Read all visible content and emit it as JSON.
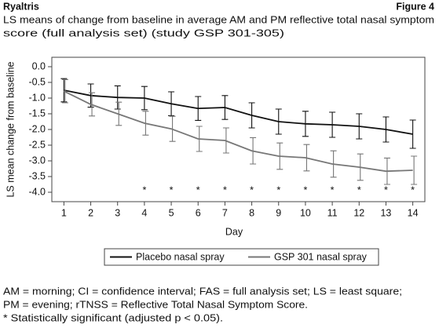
{
  "header": {
    "brand": "Ryaltris",
    "figure": "Figure 4"
  },
  "chart_data": {
    "type": "line",
    "title": [
      "LS means of change from baseline in average AM and PM reflective total nasal symptom",
      "score (full analysis set) (study GSP 301-305)"
    ],
    "x_label": "Day",
    "y_label": "LS mean change from baseline",
    "x": [
      1,
      2,
      3,
      4,
      5,
      6,
      7,
      8,
      9,
      10,
      11,
      12,
      13,
      14
    ],
    "series": [
      {
        "name": "Placebo nasal spray",
        "color": "#111111",
        "values": [
          -0.75,
          -0.92,
          -0.98,
          -1.0,
          -1.18,
          -1.33,
          -1.3,
          -1.55,
          -1.75,
          -1.82,
          -1.85,
          -1.9,
          -2.0,
          -2.15
        ],
        "errors": [
          0.37,
          0.37,
          0.37,
          0.37,
          0.38,
          0.38,
          0.38,
          0.4,
          0.4,
          0.4,
          0.4,
          0.4,
          0.4,
          0.45
        ]
      },
      {
        "name": "GSP 301 nasal spray",
        "color": "#777777",
        "values": [
          -0.78,
          -1.2,
          -1.5,
          -1.8,
          -1.98,
          -2.3,
          -2.35,
          -2.68,
          -2.85,
          -2.9,
          -3.1,
          -3.2,
          -3.33,
          -3.3
        ],
        "errors": [
          0.37,
          0.37,
          0.37,
          0.38,
          0.4,
          0.4,
          0.4,
          0.42,
          0.42,
          0.42,
          0.42,
          0.42,
          0.42,
          0.45
        ]
      }
    ],
    "significance": {
      "label": "*",
      "days": [
        4,
        5,
        6,
        7,
        8,
        9,
        10,
        11,
        12,
        13,
        14
      ]
    },
    "xlim": [
      0.55,
      14.45
    ],
    "xticks": [
      1,
      2,
      3,
      4,
      5,
      6,
      7,
      8,
      9,
      10,
      11,
      12,
      13,
      14
    ],
    "ylim": [
      -4.3,
      0.3
    ],
    "yticks": [
      {
        "value": 0,
        "label": "0.0"
      },
      -0.5,
      {
        "value": -1,
        "label": "-1.0"
      },
      -1.5,
      {
        "value": -2,
        "label": "-2.0"
      },
      -2.5,
      {
        "value": -3,
        "label": "-3.0"
      },
      -3.5,
      {
        "value": -4,
        "label": "-4.0"
      }
    ],
    "legend": "bottom"
  },
  "footnotes": [
    "AM = morning; CI = confidence interval; FAS = full analysis set; LS = least square;",
    "PM = evening; rTNSS = Reflective Total Nasal Symptom Score.",
    "* Statistically significant (adjusted p < 0.05)."
  ]
}
